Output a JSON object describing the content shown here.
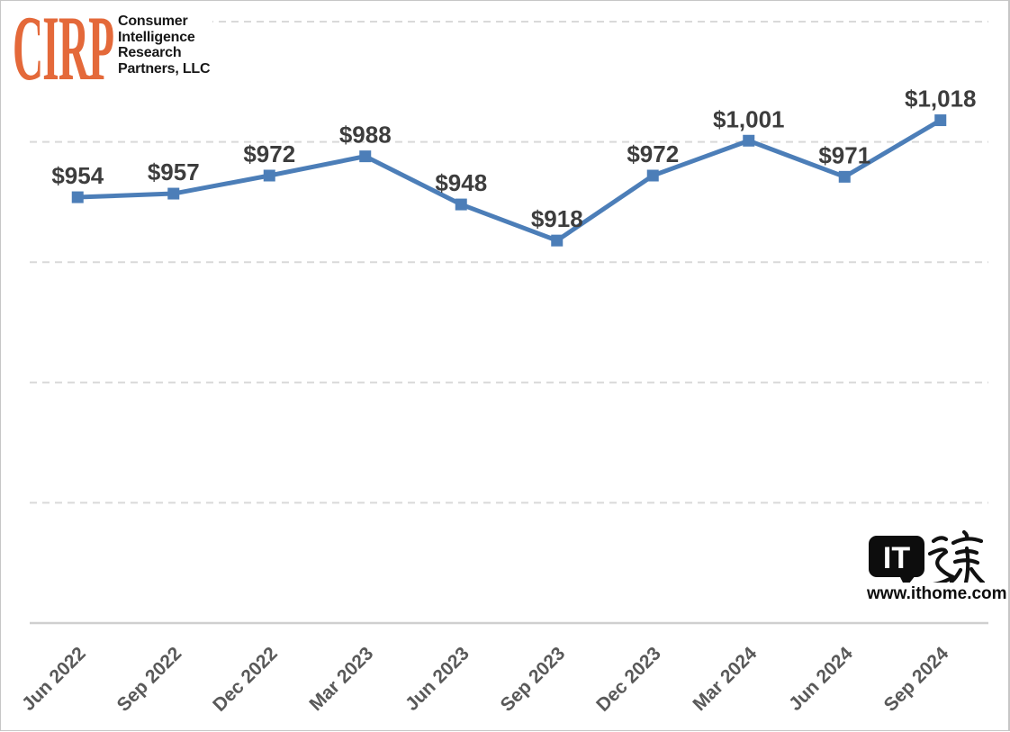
{
  "logo": {
    "acronym": "CIRP",
    "name_lines": [
      "Consumer",
      "Intelligence",
      "Research",
      "Partners, LLC"
    ],
    "accent_color": "#E4693A"
  },
  "watermark": {
    "bubble_text": "IT",
    "site_name": "IT之家",
    "url": "www.ithome.com"
  },
  "chart_data": {
    "type": "line",
    "title": "",
    "xlabel": "",
    "ylabel": "",
    "categories": [
      "Jun 2022",
      "Sep 2022",
      "Dec 2022",
      "Mar 2023",
      "Jun 2023",
      "Sep 2023",
      "Dec 2023",
      "Mar 2024",
      "Jun 2024",
      "Sep 2024"
    ],
    "values": [
      954,
      957,
      972,
      988,
      948,
      918,
      972,
      1001,
      971,
      1018
    ],
    "point_labels": [
      "$954",
      "$957",
      "$972",
      "$988",
      "$948",
      "$918",
      "$972",
      "$1,001",
      "$971",
      "$1,018"
    ],
    "ylim": [
      600,
      1100
    ],
    "gridline_step": 100,
    "grid": "dashed-horizontal",
    "y_axis_tick_labels_visible": false,
    "legend_position": "none",
    "line_color": "#4C7EB8",
    "marker": "square",
    "data_label_color": "#3d3d3d",
    "axis_label_color": "#595959",
    "gridline_color": "#d9d9d9",
    "axis_line_color": "#cfcfcf"
  }
}
